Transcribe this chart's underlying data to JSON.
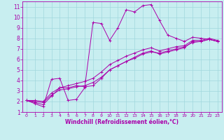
{
  "xlabel": "Windchill (Refroidissement éolien,°C)",
  "xlim": [
    -0.5,
    23.5
  ],
  "ylim": [
    1,
    11.5
  ],
  "xticks": [
    0,
    1,
    2,
    3,
    4,
    5,
    6,
    7,
    8,
    9,
    10,
    11,
    12,
    13,
    14,
    15,
    16,
    17,
    18,
    19,
    20,
    21,
    22,
    23
  ],
  "yticks": [
    1,
    2,
    3,
    4,
    5,
    6,
    7,
    8,
    9,
    10,
    11
  ],
  "background_color": "#c8eef0",
  "grid_color": "#a0d8dc",
  "line_color": "#aa00aa",
  "lines": [
    [
      2.1,
      1.8,
      1.5,
      4.1,
      4.2,
      2.1,
      2.2,
      3.3,
      9.5,
      9.4,
      7.8,
      9.0,
      10.7,
      10.5,
      11.1,
      11.2,
      9.7,
      8.3,
      8.0,
      7.7,
      8.1,
      8.0,
      7.9,
      7.7
    ],
    [
      2.1,
      1.9,
      1.7,
      2.5,
      3.3,
      3.3,
      3.5,
      3.4,
      3.5,
      4.2,
      5.0,
      5.4,
      5.8,
      6.2,
      6.6,
      6.8,
      6.5,
      6.7,
      6.9,
      7.1,
      7.7,
      7.7,
      7.9,
      7.7
    ],
    [
      2.1,
      2.0,
      1.9,
      2.6,
      3.1,
      3.2,
      3.4,
      3.5,
      3.8,
      4.3,
      5.0,
      5.4,
      5.8,
      6.1,
      6.5,
      6.7,
      6.6,
      6.8,
      7.0,
      7.2,
      7.6,
      7.7,
      7.9,
      7.7
    ],
    [
      2.1,
      2.1,
      2.0,
      2.8,
      3.3,
      3.5,
      3.7,
      3.9,
      4.2,
      4.8,
      5.5,
      5.9,
      6.3,
      6.6,
      6.9,
      7.1,
      6.8,
      7.0,
      7.2,
      7.3,
      7.8,
      7.8,
      8.0,
      7.8
    ]
  ],
  "figsize": [
    3.2,
    2.0
  ],
  "dpi": 100
}
